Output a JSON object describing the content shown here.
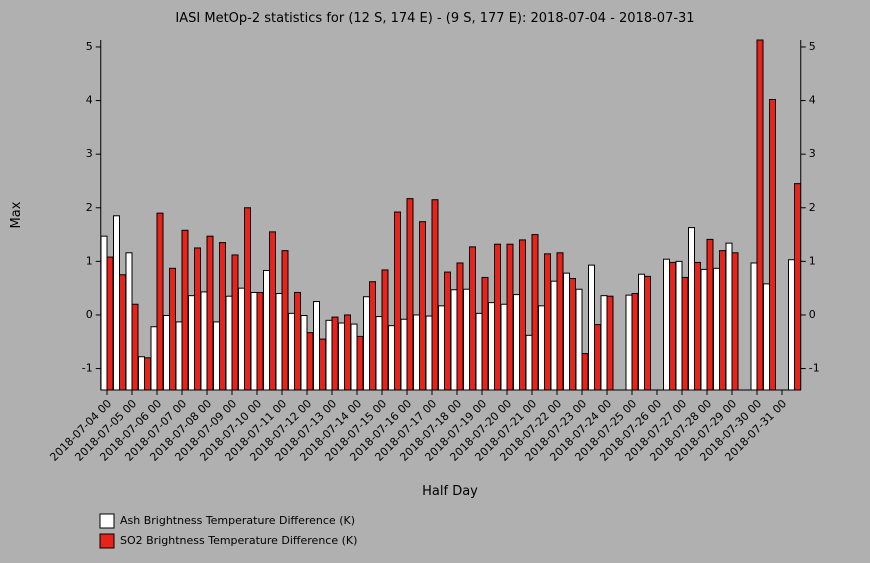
{
  "chart_data": {
    "type": "bar",
    "title": "IASI MetOp-2 statistics for (12 S, 174 E) - (9 S, 177 E): 2018-07-04 - 2018-07-31",
    "x_label": "Half Day",
    "y_label": "Max",
    "categories": [
      "2018-07-04 00",
      null,
      "2018-07-05 00",
      null,
      "2018-07-06 00",
      null,
      "2018-07-07 00",
      null,
      "2018-07-08 00",
      null,
      "2018-07-09 00",
      null,
      "2018-07-10 00",
      null,
      "2018-07-11 00",
      null,
      "2018-07-12 00",
      null,
      "2018-07-13 00",
      null,
      "2018-07-14 00",
      null,
      "2018-07-15 00",
      null,
      "2018-07-16 00",
      null,
      "2018-07-17 00",
      null,
      "2018-07-18 00",
      null,
      "2018-07-19 00",
      null,
      "2018-07-20 00",
      null,
      "2018-07-21 00",
      null,
      "2018-07-22 00",
      null,
      "2018-07-23 00",
      null,
      "2018-07-24 00",
      null,
      "2018-07-25 00",
      null,
      "2018-07-26 00",
      null,
      "2018-07-27 00",
      null,
      "2018-07-28 00",
      null,
      "2018-07-29 00",
      null,
      "2018-07-30 00",
      null,
      "2018-07-31 00",
      null
    ],
    "series": [
      {
        "name": "Ash Brightness Temperature Difference (K)",
        "color": "#ffffff",
        "values": [
          1.47,
          1.85,
          1.16,
          -0.78,
          -0.22,
          -0.01,
          -0.13,
          0.36,
          0.43,
          -0.13,
          0.35,
          0.5,
          0.42,
          0.83,
          0.4,
          0.03,
          -0.01,
          0.25,
          -0.1,
          -0.15,
          -0.17,
          0.34,
          -0.03,
          -0.2,
          -0.08,
          0.0,
          -0.02,
          0.17,
          0.47,
          0.48,
          0.03,
          0.23,
          0.2,
          0.38,
          -0.38,
          0.17,
          0.63,
          0.78,
          0.48,
          0.93,
          0.36,
          null,
          0.37,
          0.76,
          null,
          1.04,
          1.0,
          1.63,
          0.85,
          0.87,
          1.34,
          null,
          0.97,
          0.58,
          null,
          1.03
        ]
      },
      {
        "name": "SO2 Brightness Temperature Difference (K)",
        "color": "#e8231c",
        "values": [
          1.08,
          0.75,
          0.2,
          -0.8,
          1.9,
          0.87,
          1.58,
          1.25,
          1.47,
          1.35,
          1.12,
          2.0,
          0.42,
          1.55,
          1.2,
          0.42,
          -0.33,
          -0.45,
          -0.04,
          0.0,
          -0.4,
          0.62,
          0.84,
          1.92,
          2.17,
          1.74,
          2.15,
          0.8,
          0.97,
          1.27,
          0.7,
          1.32,
          1.32,
          1.4,
          1.5,
          1.14,
          1.16,
          0.68,
          -0.72,
          -0.18,
          0.35,
          null,
          0.4,
          0.72,
          null,
          0.98,
          0.7,
          0.98,
          1.41,
          1.2,
          1.16,
          null,
          5.13,
          4.02,
          null,
          2.45
        ]
      }
    ],
    "ylim": [
      -1.4,
      5.13
    ],
    "yticks": [
      -1,
      0,
      1,
      2,
      3,
      4,
      5
    ],
    "legend": "bottom-left"
  }
}
